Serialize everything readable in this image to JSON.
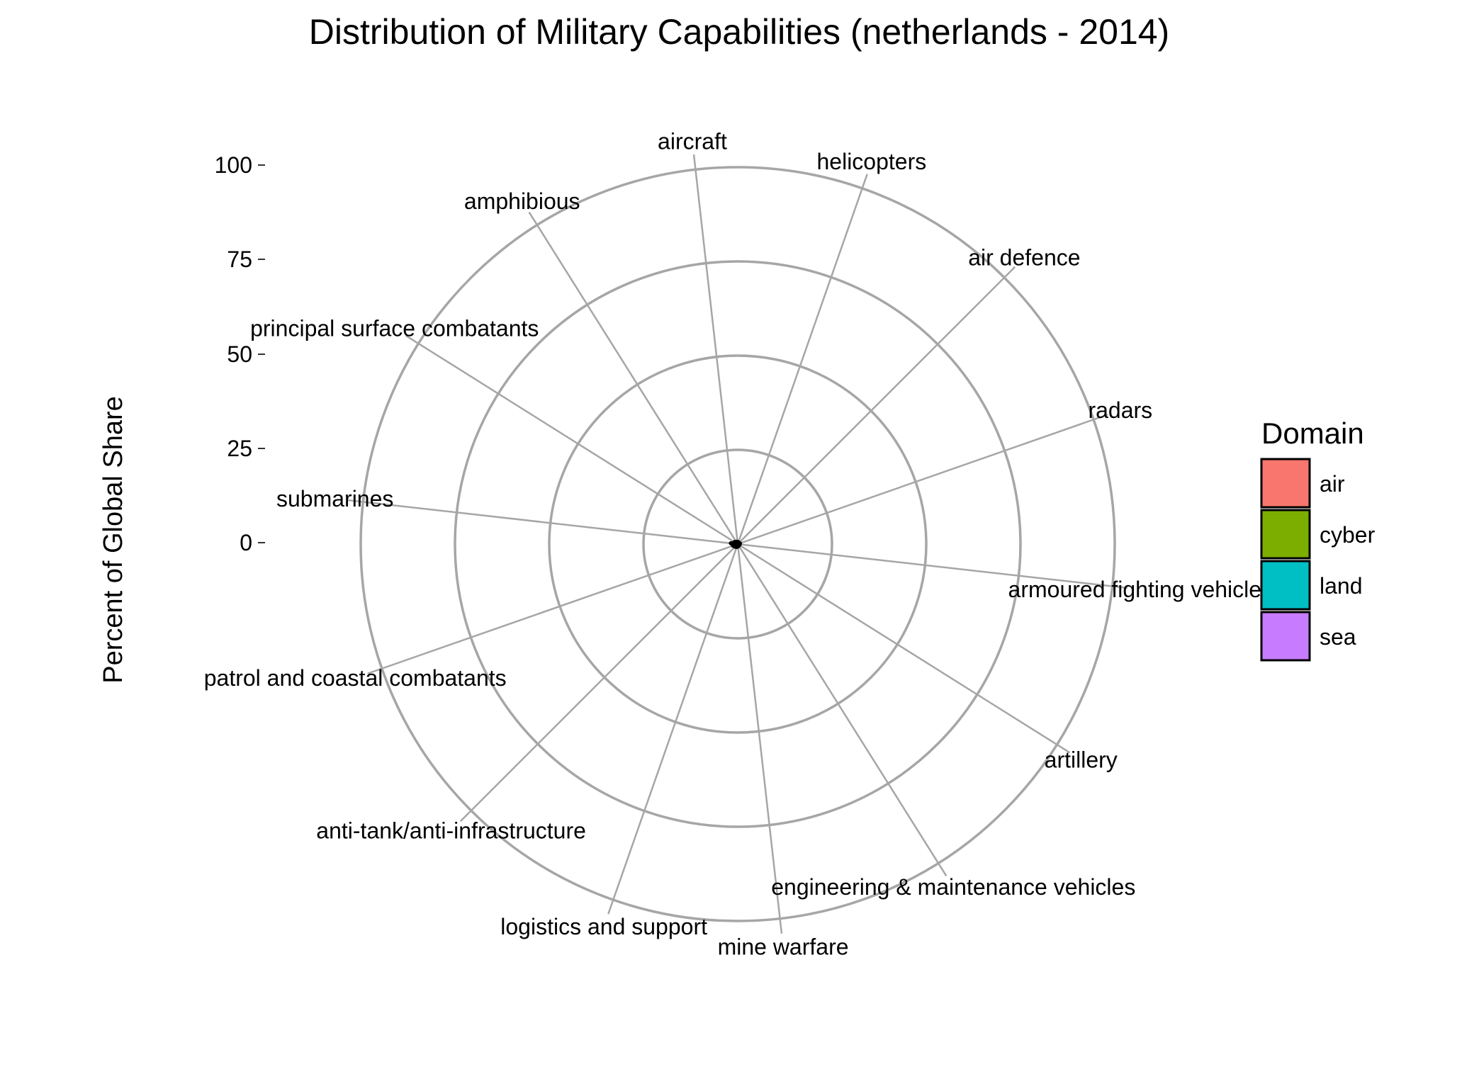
{
  "chart_data": {
    "type": "radar",
    "title": "Distribution of Military Capabilities (netherlands - 2014)",
    "ylabel": "Percent of Global Share",
    "ylim": [
      0,
      100
    ],
    "y_ticks": [
      "100",
      "75",
      "50",
      "25",
      "0"
    ],
    "categories": [
      "aircraft",
      "helicopters",
      "air defence",
      "radars",
      "armoured fighting vehicles",
      "artillery",
      "engineering & maintenance vehicles",
      "mine warfare",
      "logistics and support",
      "anti-tank/anti-infrastructure",
      "patrol and coastal combatants",
      "submarines",
      "principal surface combatants",
      "amphibious"
    ],
    "values": [
      0.6,
      0.5,
      0.4,
      0.6,
      0.5,
      0.4,
      0.5,
      0.6,
      0.8,
      1.0,
      1.3,
      1.8,
      1.0,
      0.7
    ],
    "legend": {
      "title": "Domain",
      "placement": "right",
      "items": [
        {
          "label": "air",
          "color": "#F8766D"
        },
        {
          "label": "cyber",
          "color": "#7CAE00"
        },
        {
          "label": "land",
          "color": "#00BFC4"
        },
        {
          "label": "sea",
          "color": "#C77CFF"
        }
      ]
    },
    "grid": true
  }
}
